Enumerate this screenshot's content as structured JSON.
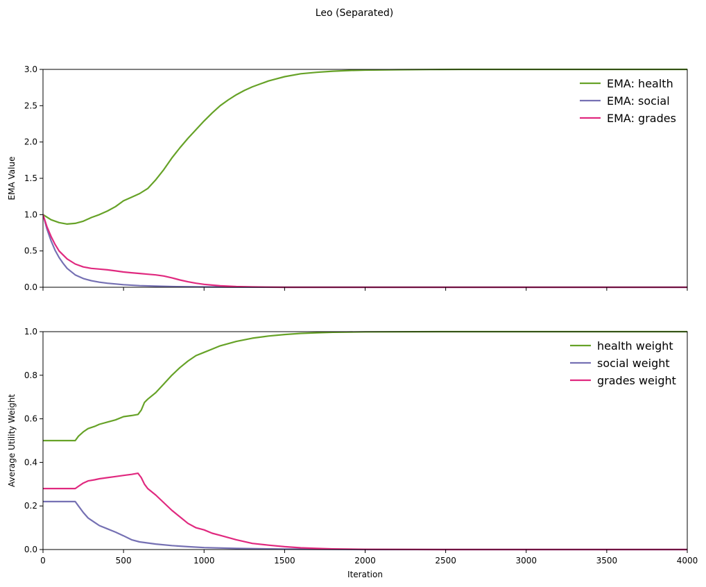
{
  "figure": {
    "title": "Leo (Separated)"
  },
  "colors": {
    "health": "#66a227",
    "social": "#7570b3",
    "grades": "#e0297f"
  },
  "chart_data": [
    {
      "type": "line",
      "ylabel": "EMA Value",
      "xlabel": "",
      "xlim": [
        0,
        4000
      ],
      "ylim": [
        0,
        3.0
      ],
      "xticks": [
        0,
        500,
        1000,
        1500,
        2000,
        2500,
        3000,
        3500,
        4000
      ],
      "yticks": [
        0.0,
        0.5,
        1.0,
        1.5,
        2.0,
        2.5,
        3.0
      ],
      "ytick_labels": [
        "0.0",
        "0.5",
        "1.0",
        "1.5",
        "2.0",
        "2.5",
        "3.0"
      ],
      "show_xtick_labels": false,
      "legend": "top-right",
      "series": [
        {
          "name": "EMA: health",
          "color": "#66a227",
          "x": [
            0,
            50,
            100,
            150,
            200,
            250,
            300,
            350,
            400,
            450,
            500,
            550,
            600,
            650,
            700,
            750,
            800,
            850,
            900,
            950,
            1000,
            1050,
            1100,
            1150,
            1200,
            1250,
            1300,
            1350,
            1400,
            1450,
            1500,
            1600,
            1700,
            1800,
            1900,
            2000,
            2200,
            2400,
            2600,
            3000,
            3500,
            4000
          ],
          "y": [
            1.0,
            0.93,
            0.89,
            0.87,
            0.88,
            0.91,
            0.96,
            1.0,
            1.05,
            1.11,
            1.19,
            1.24,
            1.29,
            1.36,
            1.48,
            1.62,
            1.78,
            1.92,
            2.05,
            2.17,
            2.29,
            2.4,
            2.5,
            2.58,
            2.65,
            2.71,
            2.76,
            2.8,
            2.84,
            2.87,
            2.9,
            2.94,
            2.96,
            2.975,
            2.985,
            2.99,
            2.995,
            2.998,
            3.0,
            3.0,
            3.0,
            3.0
          ]
        },
        {
          "name": "EMA: social",
          "color": "#7570b3",
          "x": [
            0,
            25,
            50,
            75,
            100,
            125,
            150,
            200,
            250,
            300,
            350,
            400,
            500,
            600,
            700,
            800,
            1000,
            1200,
            1500,
            2000,
            3000,
            4000
          ],
          "y": [
            1.0,
            0.8,
            0.64,
            0.51,
            0.41,
            0.33,
            0.26,
            0.17,
            0.12,
            0.09,
            0.07,
            0.055,
            0.035,
            0.022,
            0.015,
            0.01,
            0.005,
            0.002,
            0.0,
            0.0,
            0.0,
            0.0
          ]
        },
        {
          "name": "EMA: grades",
          "color": "#e0297f",
          "x": [
            0,
            25,
            50,
            75,
            100,
            150,
            200,
            250,
            300,
            350,
            400,
            450,
            500,
            550,
            600,
            650,
            700,
            750,
            800,
            850,
            900,
            950,
            1000,
            1050,
            1100,
            1200,
            1300,
            1500,
            2000,
            3000,
            4000
          ],
          "y": [
            1.0,
            0.83,
            0.7,
            0.59,
            0.5,
            0.39,
            0.32,
            0.28,
            0.26,
            0.25,
            0.24,
            0.225,
            0.21,
            0.2,
            0.19,
            0.18,
            0.17,
            0.155,
            0.13,
            0.1,
            0.075,
            0.055,
            0.04,
            0.03,
            0.02,
            0.01,
            0.005,
            0.0,
            0.0,
            0.0,
            0.0
          ]
        }
      ]
    },
    {
      "type": "line",
      "ylabel": "Average Utility Weight",
      "xlabel": "Iteration",
      "xlim": [
        0,
        4000
      ],
      "ylim": [
        0,
        1.0
      ],
      "xticks": [
        0,
        500,
        1000,
        1500,
        2000,
        2500,
        3000,
        3500,
        4000
      ],
      "xtick_labels": [
        "0",
        "500",
        "1000",
        "1500",
        "2000",
        "2500",
        "3000",
        "3500",
        "4000"
      ],
      "yticks": [
        0.0,
        0.2,
        0.4,
        0.6,
        0.8,
        1.0
      ],
      "ytick_labels": [
        "0.0",
        "0.2",
        "0.4",
        "0.6",
        "0.8",
        "1.0"
      ],
      "show_xtick_labels": true,
      "legend": "top-right",
      "series": [
        {
          "name": "health weight",
          "color": "#66a227",
          "x": [
            0,
            200,
            220,
            250,
            280,
            320,
            350,
            400,
            450,
            500,
            550,
            590,
            610,
            630,
            650,
            700,
            750,
            800,
            850,
            900,
            950,
            1000,
            1050,
            1100,
            1200,
            1300,
            1400,
            1500,
            1600,
            1700,
            1800,
            2000,
            2500,
            3000,
            4000
          ],
          "y": [
            0.5,
            0.5,
            0.52,
            0.54,
            0.555,
            0.565,
            0.575,
            0.585,
            0.595,
            0.61,
            0.615,
            0.62,
            0.64,
            0.675,
            0.69,
            0.72,
            0.76,
            0.8,
            0.835,
            0.865,
            0.89,
            0.905,
            0.92,
            0.935,
            0.955,
            0.97,
            0.98,
            0.987,
            0.992,
            0.995,
            0.997,
            0.999,
            1.0,
            1.0,
            1.0
          ]
        },
        {
          "name": "social weight",
          "color": "#7570b3",
          "x": [
            0,
            200,
            220,
            250,
            280,
            320,
            350,
            400,
            450,
            500,
            550,
            600,
            700,
            800,
            900,
            1000,
            1200,
            1500,
            2000,
            3000,
            4000
          ],
          "y": [
            0.22,
            0.22,
            0.2,
            0.17,
            0.145,
            0.125,
            0.11,
            0.095,
            0.08,
            0.063,
            0.045,
            0.035,
            0.025,
            0.018,
            0.013,
            0.009,
            0.005,
            0.002,
            0.0,
            0.0,
            0.0
          ]
        },
        {
          "name": "grades weight",
          "color": "#e0297f",
          "x": [
            0,
            200,
            220,
            250,
            280,
            320,
            350,
            400,
            450,
            500,
            550,
            590,
            610,
            630,
            650,
            700,
            750,
            800,
            850,
            900,
            950,
            1000,
            1050,
            1100,
            1200,
            1300,
            1400,
            1500,
            1600,
            1700,
            1800,
            2000,
            2500,
            3000,
            4000
          ],
          "y": [
            0.28,
            0.28,
            0.29,
            0.305,
            0.315,
            0.32,
            0.325,
            0.33,
            0.335,
            0.34,
            0.345,
            0.35,
            0.33,
            0.3,
            0.28,
            0.25,
            0.215,
            0.18,
            0.15,
            0.12,
            0.1,
            0.09,
            0.075,
            0.065,
            0.045,
            0.028,
            0.02,
            0.013,
            0.008,
            0.005,
            0.003,
            0.001,
            0.0,
            0.0,
            0.0
          ]
        }
      ]
    }
  ]
}
